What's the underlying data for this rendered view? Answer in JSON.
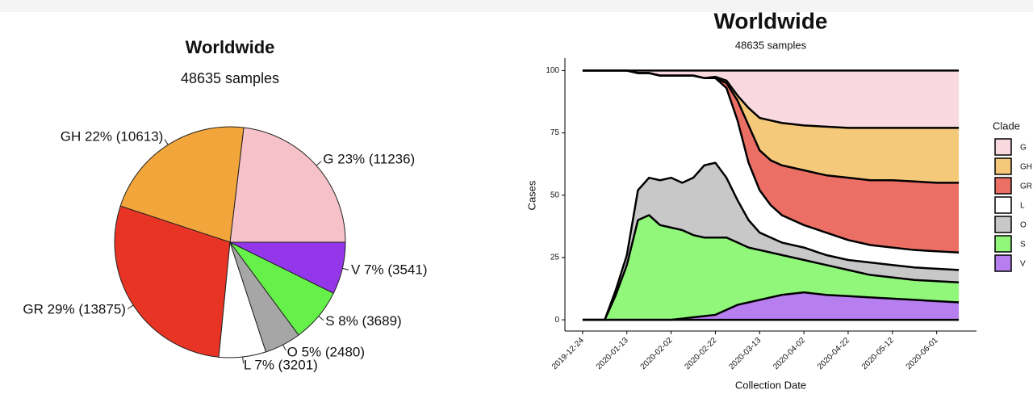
{
  "chart_data": [
    {
      "type": "pie",
      "title": "Worldwide",
      "subtitle": "48635 samples",
      "categories": [
        "G",
        "GH",
        "GR",
        "L",
        "O",
        "S",
        "V"
      ],
      "values": [
        11236,
        10613,
        13875,
        3201,
        2480,
        3689,
        3541
      ],
      "value_labels": [
        "G 23% (11236)",
        "GH 22% (10613)",
        "GR 29% (13875)",
        "L 7% (3201)",
        "O 5% (2480)",
        "S 8% (3689)",
        "V 7% (3541)"
      ],
      "colors": [
        "#f6c1c8",
        "#f2a53a",
        "#e83424",
        "#ffffff",
        "#a6a6a6",
        "#66f04a",
        "#9437ea"
      ]
    },
    {
      "type": "area",
      "stacked": true,
      "title": "Worldwide",
      "subtitle": "48635 samples",
      "xlabel": "Collection Date",
      "ylabel": "Cases",
      "legend_title": "Clade",
      "legend": "right",
      "x": [
        "2019-12-24",
        "2020-01-03",
        "2020-01-08",
        "2020-01-13",
        "2020-01-18",
        "2020-01-23",
        "2020-01-28",
        "2020-02-02",
        "2020-02-07",
        "2020-02-12",
        "2020-02-17",
        "2020-02-22",
        "2020-02-27",
        "2020-03-03",
        "2020-03-08",
        "2020-03-13",
        "2020-03-18",
        "2020-03-23",
        "2020-04-02",
        "2020-04-12",
        "2020-04-22",
        "2020-05-02",
        "2020-05-12",
        "2020-05-22",
        "2020-06-01",
        "2020-06-11"
      ],
      "series": [
        {
          "name": "V",
          "color": "#b77ef0",
          "values": [
            0,
            0,
            0,
            0,
            0,
            0,
            0,
            0,
            0.5,
            1,
            1.5,
            2,
            4,
            6,
            7,
            8,
            9,
            10,
            11,
            10,
            9.5,
            9,
            8.5,
            8,
            7.5,
            7
          ]
        },
        {
          "name": "S",
          "color": "#90f77a",
          "values": [
            0,
            0,
            10,
            22,
            40,
            42,
            38,
            37,
            35.5,
            33,
            31.5,
            31,
            29,
            25,
            22,
            20,
            18,
            16,
            13,
            12,
            10.5,
            9,
            8.5,
            8,
            8,
            8
          ]
        },
        {
          "name": "O",
          "color": "#c8c8c8",
          "values": [
            0,
            0,
            2,
            4,
            12,
            15,
            18,
            20,
            19,
            23,
            29,
            30,
            24,
            17,
            11,
            7,
            6,
            5,
            5,
            4,
            4,
            5,
            5,
            5,
            5,
            5
          ]
        },
        {
          "name": "L",
          "color": "#ffffff",
          "values": [
            100,
            100,
            88,
            74,
            47,
            42,
            42,
            41,
            43,
            41,
            35,
            34,
            36,
            32,
            23,
            17,
            13,
            11,
            9,
            9,
            8,
            7,
            7,
            7,
            7,
            7
          ]
        },
        {
          "name": "GR",
          "color": "#ec6f66",
          "values": [
            0,
            0,
            0,
            0,
            0,
            0,
            0,
            0,
            0,
            0,
            0,
            0,
            2,
            8,
            15,
            16,
            18,
            20,
            22,
            23,
            25,
            26,
            27,
            27.5,
            27.5,
            28
          ]
        },
        {
          "name": "GH",
          "color": "#f5c97a",
          "values": [
            0,
            0,
            0,
            0,
            0,
            0,
            0,
            0,
            0,
            0,
            0,
            0.5,
            1,
            2,
            7,
            13,
            16,
            17,
            18,
            19.5,
            20,
            21,
            21,
            21.5,
            22,
            22
          ]
        },
        {
          "name": "G",
          "color": "#f9d9df",
          "values": [
            0,
            0,
            0,
            0,
            1,
            1,
            2,
            2,
            2,
            2,
            3,
            2.5,
            4,
            10,
            15,
            19,
            20,
            21,
            22,
            22.5,
            23,
            23,
            23,
            23,
            23,
            23
          ]
        }
      ],
      "legend_order": [
        "G",
        "GH",
        "GR",
        "L",
        "O",
        "S",
        "V"
      ],
      "xlim": [
        "2019-12-16",
        "2020-06-19"
      ],
      "xticks": [
        "2019-12-24",
        "2020-01-13",
        "2020-02-02",
        "2020-02-22",
        "2020-03-13",
        "2020-04-02",
        "2020-04-22",
        "2020-05-12",
        "2020-06-01"
      ],
      "ylim": [
        -4.5,
        105
      ],
      "yticks": [
        0,
        25,
        50,
        75,
        100
      ]
    }
  ]
}
